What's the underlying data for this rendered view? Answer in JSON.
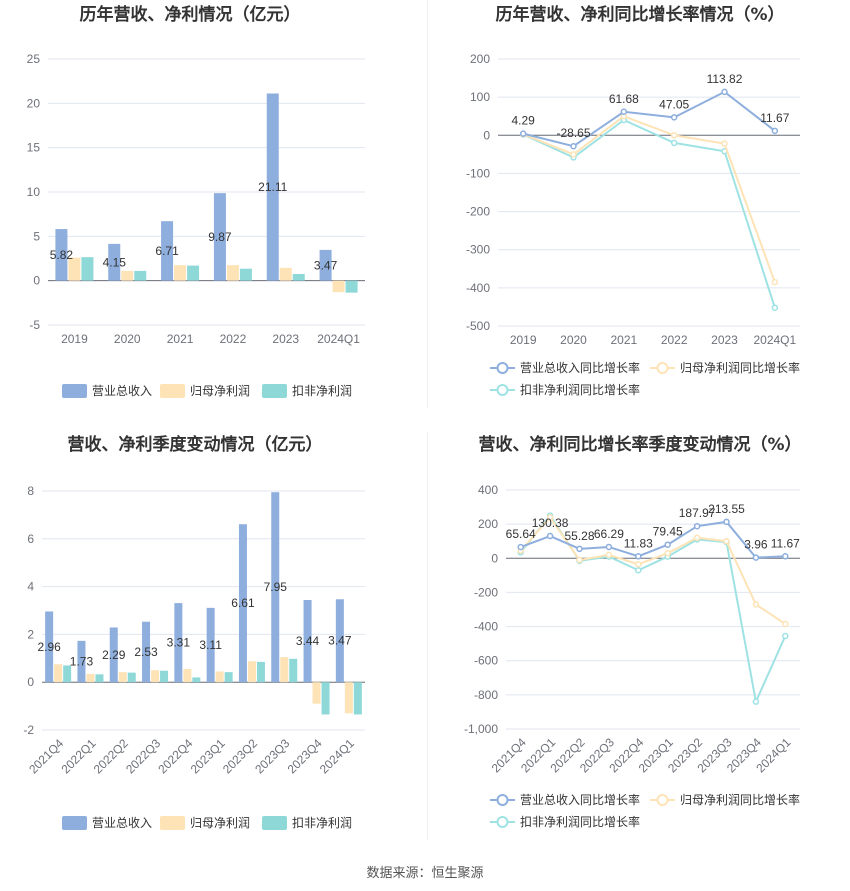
{
  "colors": {
    "revenue": "#8eaedd",
    "net_profit": "#fde3b6",
    "deducted_profit": "#8ed8d8",
    "revenue_line": "#8eaedd",
    "net_profit_line": "#fde3b6",
    "deducted_profit_line": "#9fe2e3"
  },
  "legend": {
    "revenue": "营业总收入",
    "net_profit": "归母净利润",
    "deducted_profit": "扣非净利润",
    "revenue_growth": "营业总收入同比增长率",
    "net_profit_growth": "归母净利润同比增长率",
    "deducted_profit_growth": "扣非净利润同比增长率"
  },
  "source": "数据来源：恒生聚源",
  "chart_data": [
    {
      "type": "bar",
      "title": "历年营收、净利情况（亿元）",
      "categories": [
        "2019",
        "2020",
        "2021",
        "2022",
        "2023",
        "2024Q1"
      ],
      "ylim": [
        -5,
        25
      ],
      "yticks": [
        -5,
        0,
        5,
        10,
        15,
        20,
        25
      ],
      "grid": true,
      "legend_position": "bottom",
      "series": [
        {
          "name": "营业总收入",
          "values": [
            5.82,
            4.15,
            6.71,
            9.87,
            21.11,
            3.47
          ],
          "labels": [
            "5.82",
            "4.15",
            "6.71",
            "9.87",
            "21.11",
            "3.47"
          ]
        },
        {
          "name": "归母净利润",
          "values": [
            2.6,
            1.1,
            1.75,
            1.75,
            1.45,
            -1.3
          ]
        },
        {
          "name": "扣非净利润",
          "values": [
            2.65,
            1.1,
            1.7,
            1.35,
            0.75,
            -1.35
          ]
        }
      ]
    },
    {
      "type": "line",
      "title": "历年营收、净利同比增长率情况（%）",
      "categories": [
        "2019",
        "2020",
        "2021",
        "2022",
        "2023",
        "2024Q1"
      ],
      "ylim": [
        -500,
        200
      ],
      "yticks": [
        -500,
        -400,
        -300,
        -200,
        -100,
        0,
        100,
        200
      ],
      "grid": true,
      "legend_position": "bottom",
      "series": [
        {
          "name": "营业总收入同比增长率",
          "values": [
            4.29,
            -28.65,
            61.68,
            47.05,
            113.82,
            11.67
          ],
          "labels": [
            "4.29",
            "-28.65",
            "61.68",
            "47.05",
            "113.82",
            "11.67"
          ]
        },
        {
          "name": "归母净利润同比增长率",
          "values": [
            3,
            -50,
            50,
            0,
            -22,
            -385
          ]
        },
        {
          "name": "扣非净利润同比增长率",
          "values": [
            2,
            -58,
            40,
            -20,
            -42,
            -452
          ]
        }
      ]
    },
    {
      "type": "bar",
      "title": "营收、净利季度变动情况（亿元）",
      "categories": [
        "2021Q4",
        "2022Q1",
        "2022Q2",
        "2022Q3",
        "2022Q4",
        "2023Q1",
        "2023Q2",
        "2023Q3",
        "2023Q4",
        "2024Q1"
      ],
      "ylim": [
        -2,
        8
      ],
      "yticks": [
        -2,
        0,
        2,
        4,
        6,
        8
      ],
      "grid": true,
      "legend_position": "bottom",
      "series": [
        {
          "name": "营业总收入",
          "values": [
            2.96,
            1.73,
            2.29,
            2.53,
            3.31,
            3.11,
            6.61,
            7.95,
            3.44,
            3.47
          ],
          "labels": [
            "2.96",
            "1.73",
            "2.29",
            "2.53",
            "3.31",
            "3.11",
            "6.61",
            "7.95",
            "3.44",
            "3.47"
          ]
        },
        {
          "name": "归母净利润",
          "values": [
            0.75,
            0.35,
            0.42,
            0.5,
            0.55,
            0.45,
            0.88,
            1.05,
            -0.9,
            -1.3
          ]
        },
        {
          "name": "扣非净利润",
          "values": [
            0.7,
            0.33,
            0.4,
            0.48,
            0.2,
            0.42,
            0.85,
            0.98,
            -1.35,
            -1.35
          ]
        }
      ]
    },
    {
      "type": "line",
      "title": "营收、净利同比增长率季度变动情况（%）",
      "categories": [
        "2021Q4",
        "2022Q1",
        "2022Q2",
        "2022Q3",
        "2022Q4",
        "2023Q1",
        "2023Q2",
        "2023Q3",
        "2023Q4",
        "2024Q1"
      ],
      "ylim": [
        -1000,
        400
      ],
      "yticks": [
        -1000,
        -800,
        -600,
        -400,
        -200,
        0,
        200,
        400
      ],
      "grid": true,
      "legend_position": "bottom",
      "series": [
        {
          "name": "营业总收入同比增长率",
          "values": [
            65.64,
            130.38,
            55.28,
            66.29,
            11.83,
            79.45,
            187.97,
            213.55,
            3.96,
            11.67
          ],
          "labels": [
            "65.64",
            "130.38",
            "55.28",
            "66.29",
            "11.83",
            "79.45",
            "187.97",
            "213.55",
            "3.96",
            "11.67"
          ]
        },
        {
          "name": "归母净利润同比增长率",
          "values": [
            45,
            240,
            -10,
            20,
            -35,
            30,
            120,
            100,
            -270,
            -385
          ]
        },
        {
          "name": "扣非净利润同比增长率",
          "values": [
            35,
            250,
            -15,
            10,
            -70,
            10,
            110,
            95,
            -840,
            -455
          ]
        }
      ]
    }
  ]
}
